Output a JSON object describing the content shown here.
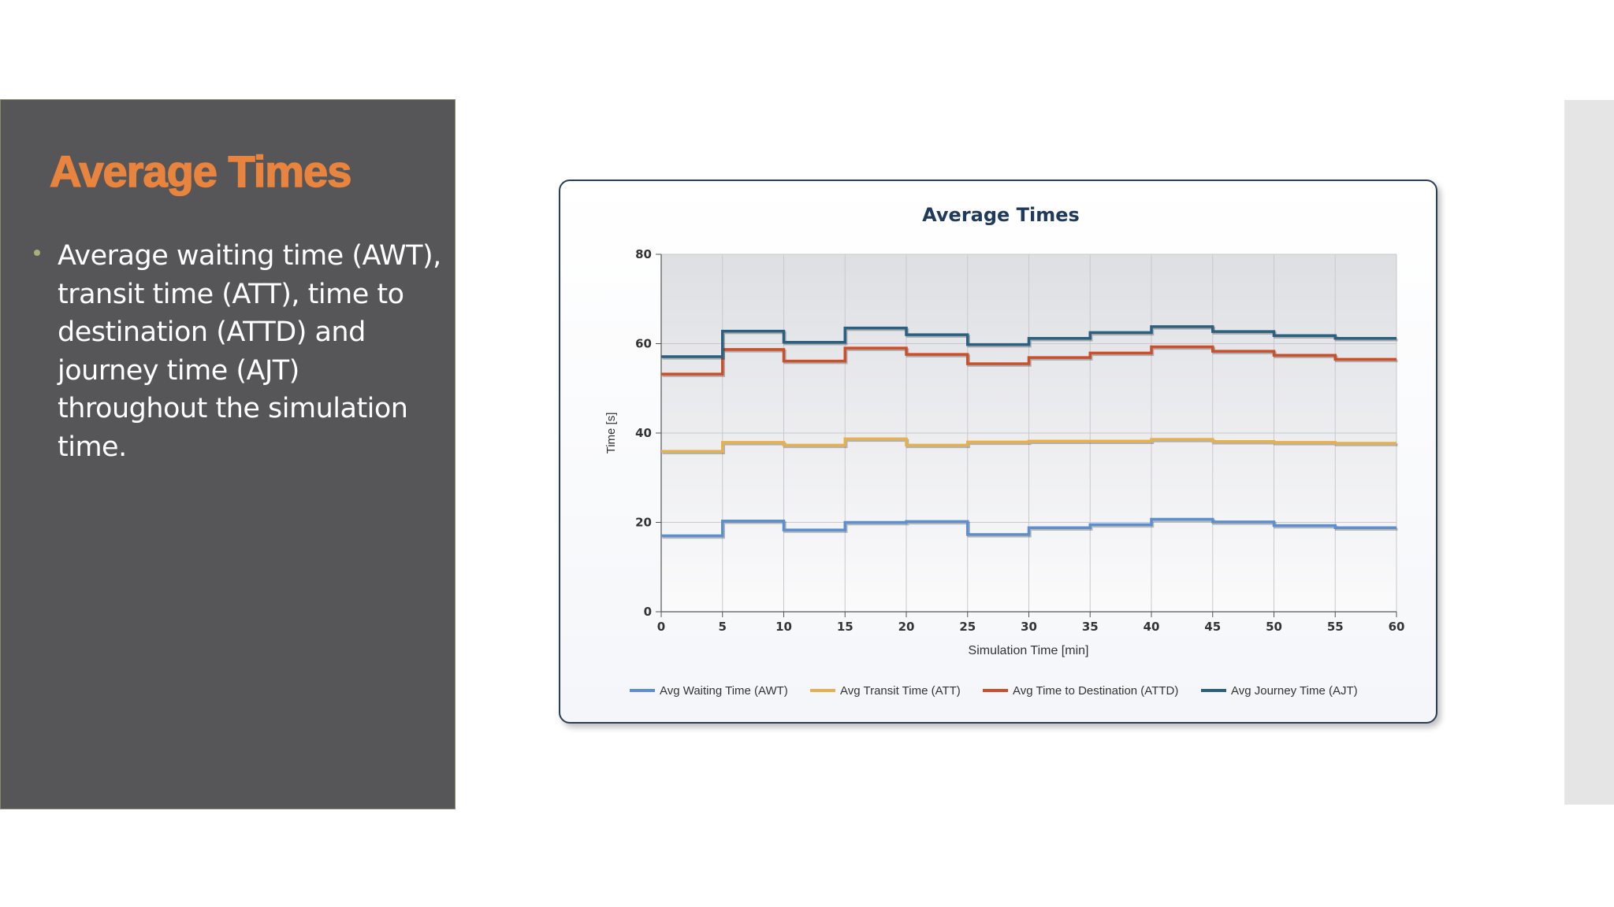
{
  "slide": {
    "title": "Average Times",
    "bullet": "Average waiting time (AWT), transit time (ATT), time to destination (ATTD) and journey time (AJT) throughout the simulation time."
  },
  "colors": {
    "panel_bg": "#565557",
    "title": "#e8843e",
    "bullet_dot": "#a8b07a"
  },
  "chart_data": {
    "type": "line",
    "step": true,
    "title": "Average Times",
    "xlabel": "Simulation Time [min]",
    "ylabel": "Time [s]",
    "xlim": [
      0,
      60
    ],
    "ylim": [
      0,
      80
    ],
    "xticks": [
      0,
      5,
      10,
      15,
      20,
      25,
      30,
      35,
      40,
      45,
      50,
      55,
      60
    ],
    "yticks": [
      0,
      20,
      40,
      60,
      80
    ],
    "grid": true,
    "legend_position": "bottom",
    "x": [
      0,
      5,
      10,
      15,
      20,
      25,
      30,
      35,
      40,
      45,
      50,
      55
    ],
    "series": [
      {
        "name": "Avg Waiting Time (AWT)",
        "color": "#5b8fd0",
        "values": [
          17,
          20.3,
          18.3,
          20,
          20.2,
          17.3,
          18.8,
          19.5,
          20.7,
          20.1,
          19.3,
          18.8
        ]
      },
      {
        "name": "Avg Transit Time (ATT)",
        "color": "#e6b04e",
        "values": [
          35.9,
          37.9,
          37.3,
          38.7,
          37.3,
          38,
          38.2,
          38.2,
          38.6,
          38.1,
          37.9,
          37.7
        ]
      },
      {
        "name": "Avg Time to Destination (ATTD)",
        "color": "#c9502a",
        "values": [
          53.2,
          58.7,
          56.1,
          59,
          57.6,
          55.5,
          56.9,
          57.9,
          59.3,
          58.3,
          57.4,
          56.5
        ]
      },
      {
        "name": "Avg Journey Time (AJT)",
        "color": "#2a6180",
        "values": [
          57.1,
          62.8,
          60.3,
          63.5,
          62,
          59.8,
          61.2,
          62.5,
          63.8,
          62.7,
          61.8,
          61.2
        ]
      }
    ]
  }
}
